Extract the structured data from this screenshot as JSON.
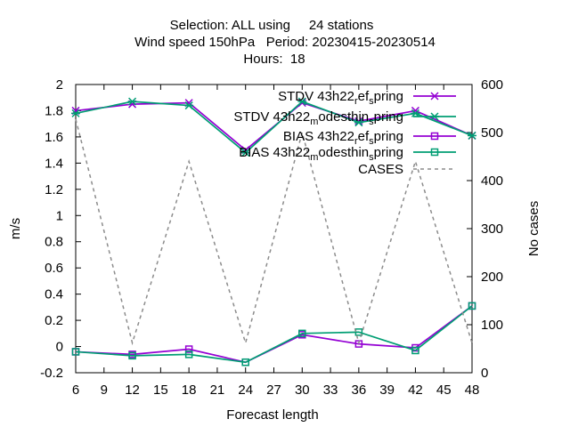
{
  "chart_data": {
    "type": "line",
    "title_lines": [
      "Selection: ALL using     24 stations",
      "Wind speed 150hPa   Period: 20230415-20230514",
      "Hours:  18"
    ],
    "xlabel": "Forecast length",
    "ylabel": "m/s",
    "y2label": "No cases",
    "x_ticks": [
      "6",
      "9",
      "12",
      "15",
      "18",
      "21",
      "24",
      "27",
      "30",
      "33",
      "36",
      "39",
      "42",
      "45",
      "48"
    ],
    "y_ticks": [
      "-0.2",
      "0",
      "0.2",
      "0.4",
      "0.6",
      "0.8",
      "1",
      "1.2",
      "1.4",
      "1.6",
      "1.8",
      "2"
    ],
    "y2_ticks": [
      "0",
      "100",
      "200",
      "300",
      "400",
      "500",
      "600"
    ],
    "xlim": [
      6,
      48
    ],
    "ylim": [
      -0.2,
      2.0
    ],
    "y2lim": [
      0,
      600
    ],
    "legend_position": "top-right",
    "series": [
      {
        "name": "STDV 43h22_ref_spring",
        "label_parts": [
          "STDV 43h22",
          "r",
          "ef",
          "s",
          "pring"
        ],
        "axis": "y",
        "color": "#9400d3",
        "marker": "x",
        "dash": "",
        "x": [
          6,
          12,
          18,
          24,
          30,
          36,
          42,
          48
        ],
        "values": [
          1.8,
          1.85,
          1.86,
          1.5,
          1.86,
          1.72,
          1.8,
          1.61
        ]
      },
      {
        "name": "STDV 43h22_modesthin_spring",
        "label_parts": [
          "STDV 43h22",
          "m",
          "odesthin",
          "s",
          "pring"
        ],
        "axis": "y",
        "color": "#009e73",
        "marker": "asterisk",
        "dash": "",
        "x": [
          6,
          12,
          18,
          24,
          30,
          36,
          42,
          48
        ],
        "values": [
          1.78,
          1.87,
          1.84,
          1.48,
          1.87,
          1.71,
          1.78,
          1.61
        ]
      },
      {
        "name": "BIAS 43h22_ref_spring",
        "label_parts": [
          "BIAS 43h22",
          "r",
          "ef",
          "s",
          "pring"
        ],
        "axis": "y",
        "color": "#9400d3",
        "marker": "square",
        "dash": "",
        "x": [
          6,
          12,
          18,
          24,
          30,
          36,
          42,
          48
        ],
        "values": [
          -0.04,
          -0.06,
          -0.02,
          -0.12,
          0.09,
          0.02,
          -0.01,
          0.31
        ]
      },
      {
        "name": "BIAS 43h22_modesthin_spring",
        "label_parts": [
          "BIAS 43h22",
          "m",
          "odesthin",
          "s",
          "pring"
        ],
        "axis": "y",
        "color": "#009e73",
        "marker": "square",
        "dash": "",
        "x": [
          6,
          12,
          18,
          24,
          30,
          36,
          42,
          48
        ],
        "values": [
          -0.04,
          -0.07,
          -0.06,
          -0.12,
          0.1,
          0.11,
          -0.03,
          0.31
        ]
      },
      {
        "name": "CASES",
        "label_parts": [
          "CASES"
        ],
        "axis": "y2",
        "color": "#8c8c8c",
        "marker": "",
        "dash": "4,4",
        "x": [
          6,
          12,
          18,
          24,
          30,
          36,
          42,
          48
        ],
        "values": [
          528,
          62,
          440,
          62,
          500,
          62,
          440,
          62
        ]
      }
    ]
  }
}
